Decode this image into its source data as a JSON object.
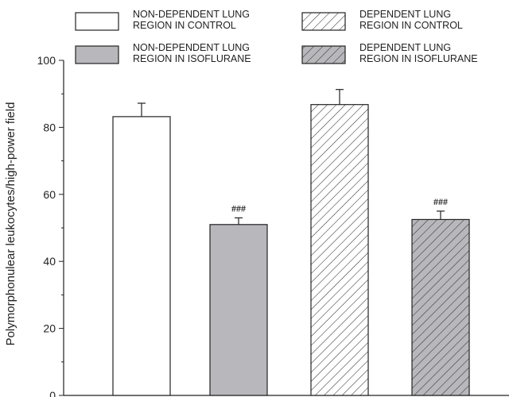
{
  "chart_data": {
    "type": "bar",
    "title": "",
    "xlabel": "",
    "ylabel": "Polymorphonulear leukocytes/high-power field",
    "ylim": [
      0,
      100
    ],
    "yticks": [
      0,
      20,
      40,
      60,
      80,
      100
    ],
    "grid": false,
    "legend_position": "top",
    "series": [
      {
        "name_lines": [
          "NON-DEPENDENT LUNG",
          "REGION IN CONTROL"
        ],
        "value": 83.2,
        "error": 4.0,
        "annotation": "",
        "fill": "#ffffff",
        "pattern": "none"
      },
      {
        "name_lines": [
          "NON-DEPENDENT LUNG",
          "REGION IN ISOFLURANE"
        ],
        "value": 51.0,
        "error": 2.0,
        "annotation": "###",
        "fill": "#b8b8bc",
        "pattern": "none"
      },
      {
        "name_lines": [
          "DEPENDENT LUNG",
          "REGION IN CONTROL"
        ],
        "value": 86.8,
        "error": 4.5,
        "annotation": "",
        "fill": "#ffffff",
        "pattern": "hatch"
      },
      {
        "name_lines": [
          "DEPENDENT LUNG",
          "REGION IN ISOFLURANE"
        ],
        "value": 52.5,
        "error": 2.5,
        "annotation": "###",
        "fill": "#b8b8bc",
        "pattern": "hatch"
      }
    ]
  }
}
